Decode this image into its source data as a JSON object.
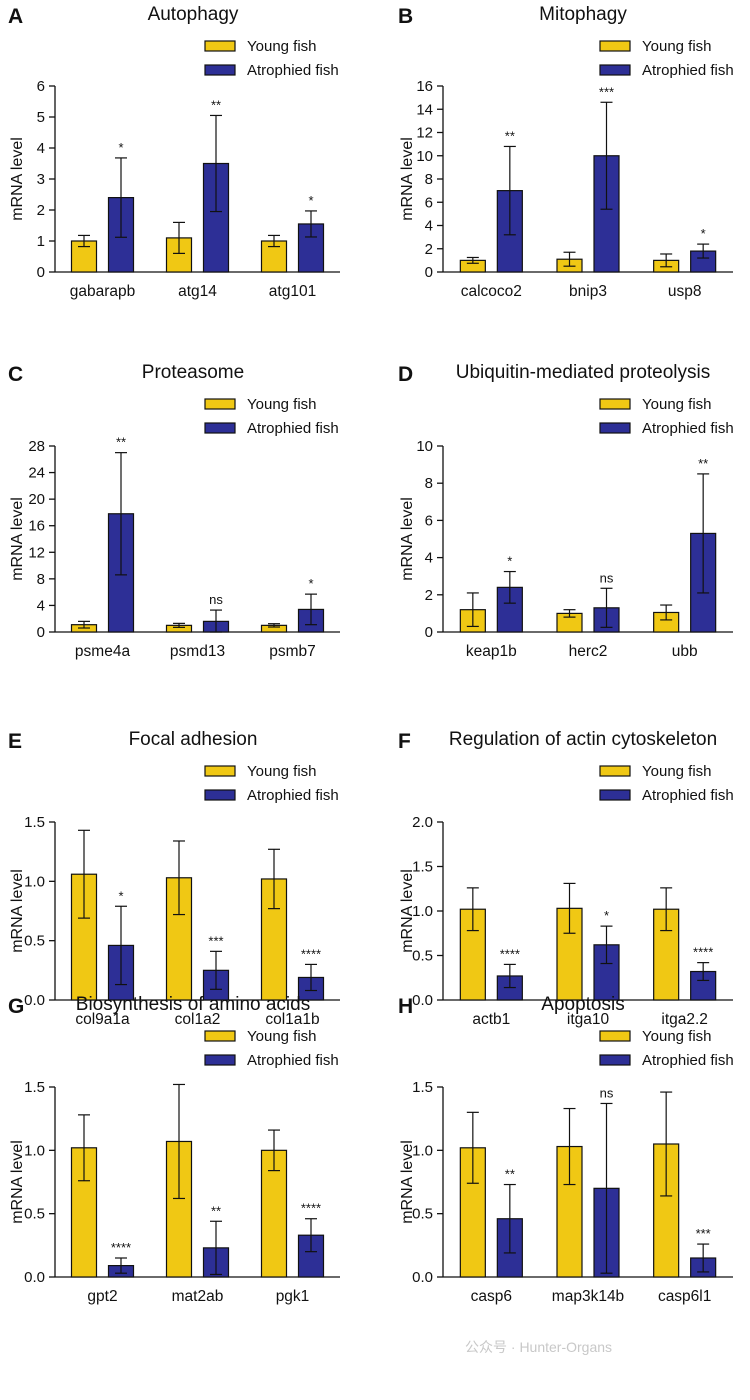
{
  "colors": {
    "young": "#f0c814",
    "atrophied": "#2d2f96",
    "stroke": "#111111"
  },
  "watermark": "公众号 · Hunter-Organs",
  "chart_data": [
    {
      "panel": "A",
      "type": "bar",
      "title": "Autophagy",
      "ylabel": "mRNA level",
      "categories": [
        "gabarapb",
        "atg14",
        "atg101"
      ],
      "ylim": [
        0,
        6
      ],
      "yticks": [
        0,
        1,
        2,
        3,
        4,
        5,
        6
      ],
      "tick_decimals": 0,
      "series": [
        {
          "name": "Young fish",
          "values": [
            1.0,
            1.1,
            1.0
          ],
          "errors": [
            0.18,
            0.5,
            0.18
          ],
          "sig": [
            "",
            "",
            ""
          ]
        },
        {
          "name": "Atrophied fish",
          "values": [
            2.4,
            3.5,
            1.55
          ],
          "errors": [
            1.28,
            1.55,
            0.42
          ],
          "sig": [
            "*",
            "**",
            "*"
          ]
        }
      ]
    },
    {
      "panel": "B",
      "type": "bar",
      "title": "Mitophagy",
      "ylabel": "mRNA level",
      "categories": [
        "calcoco2",
        "bnip3",
        "usp8"
      ],
      "ylim": [
        0,
        16
      ],
      "yticks": [
        0,
        2,
        4,
        6,
        8,
        10,
        12,
        14,
        16
      ],
      "tick_decimals": 0,
      "series": [
        {
          "name": "Young fish",
          "values": [
            1.0,
            1.1,
            1.0
          ],
          "errors": [
            0.25,
            0.6,
            0.55
          ],
          "sig": [
            "",
            "",
            ""
          ]
        },
        {
          "name": "Atrophied fish",
          "values": [
            7.0,
            10.0,
            1.8
          ],
          "errors": [
            3.8,
            4.6,
            0.6
          ],
          "sig": [
            "**",
            "***",
            "*"
          ]
        }
      ]
    },
    {
      "panel": "C",
      "type": "bar",
      "title": "Proteasome",
      "ylabel": "mRNA level",
      "categories": [
        "psme4a",
        "psmd13",
        "psmb7"
      ],
      "ylim": [
        0,
        28
      ],
      "yticks": [
        0,
        4,
        8,
        12,
        16,
        20,
        24,
        28
      ],
      "tick_decimals": 0,
      "series": [
        {
          "name": "Young fish",
          "values": [
            1.1,
            1.0,
            1.0
          ],
          "errors": [
            0.5,
            0.3,
            0.25
          ],
          "sig": [
            "",
            "",
            ""
          ]
        },
        {
          "name": "Atrophied fish",
          "values": [
            17.8,
            1.6,
            3.4
          ],
          "errors": [
            9.2,
            1.7,
            2.3
          ],
          "sig": [
            "**",
            "ns",
            "*"
          ]
        }
      ]
    },
    {
      "panel": "D",
      "type": "bar",
      "title": "Ubiquitin-mediated proteolysis",
      "ylabel": "mRNA level",
      "categories": [
        "keap1b",
        "herc2",
        "ubb"
      ],
      "ylim": [
        0,
        10
      ],
      "yticks": [
        0,
        2,
        4,
        6,
        8,
        10
      ],
      "tick_decimals": 0,
      "series": [
        {
          "name": "Young fish",
          "values": [
            1.2,
            1.0,
            1.05
          ],
          "errors": [
            0.9,
            0.2,
            0.4
          ],
          "sig": [
            "",
            "",
            ""
          ]
        },
        {
          "name": "Atrophied fish",
          "values": [
            2.4,
            1.3,
            5.3
          ],
          "errors": [
            0.85,
            1.05,
            3.2
          ],
          "sig": [
            "*",
            "ns",
            "**"
          ]
        }
      ]
    },
    {
      "panel": "E",
      "type": "bar",
      "title": "Focal adhesion",
      "ylabel": "mRNA level",
      "categories": [
        "col9a1a",
        "col1a2",
        "col1a1b"
      ],
      "ylim": [
        0,
        1.5
      ],
      "yticks": [
        0,
        0.5,
        1.0,
        1.5
      ],
      "tick_decimals": 1,
      "series": [
        {
          "name": "Young fish",
          "values": [
            1.06,
            1.03,
            1.02
          ],
          "errors": [
            0.37,
            0.31,
            0.25
          ],
          "sig": [
            "",
            "",
            ""
          ]
        },
        {
          "name": "Atrophied fish",
          "values": [
            0.46,
            0.25,
            0.19
          ],
          "errors": [
            0.33,
            0.16,
            0.11
          ],
          "sig": [
            "*",
            "***",
            "****"
          ]
        }
      ]
    },
    {
      "panel": "F",
      "type": "bar",
      "title": "Regulation of actin cytoskeleton",
      "ylabel": "mRNA level",
      "categories": [
        "actb1",
        "itga10",
        "itga2.2"
      ],
      "ylim": [
        0,
        2.0
      ],
      "yticks": [
        0,
        0.5,
        1.0,
        1.5,
        2.0
      ],
      "tick_decimals": 1,
      "series": [
        {
          "name": "Young fish",
          "values": [
            1.02,
            1.03,
            1.02
          ],
          "errors": [
            0.24,
            0.28,
            0.24
          ],
          "sig": [
            "",
            "",
            ""
          ]
        },
        {
          "name": "Atrophied fish",
          "values": [
            0.27,
            0.62,
            0.32
          ],
          "errors": [
            0.13,
            0.21,
            0.1
          ],
          "sig": [
            "****",
            "*",
            "****"
          ]
        }
      ]
    },
    {
      "panel": "G",
      "type": "bar",
      "title": "Biosynthesis of amino acids",
      "ylabel": "mRNA level",
      "categories": [
        "gpt2",
        "mat2ab",
        "pgk1"
      ],
      "ylim": [
        0,
        1.5
      ],
      "yticks": [
        0,
        0.5,
        1.0,
        1.5
      ],
      "tick_decimals": 1,
      "series": [
        {
          "name": "Young fish",
          "values": [
            1.02,
            1.07,
            1.0
          ],
          "errors": [
            0.26,
            0.45,
            0.16
          ],
          "sig": [
            "",
            "",
            ""
          ]
        },
        {
          "name": "Atrophied fish",
          "values": [
            0.09,
            0.23,
            0.33
          ],
          "errors": [
            0.06,
            0.21,
            0.13
          ],
          "sig": [
            "****",
            "**",
            "****"
          ]
        }
      ]
    },
    {
      "panel": "H",
      "type": "bar",
      "title": "Apoptosis",
      "ylabel": "mRNA level",
      "categories": [
        "casp6",
        "map3k14b",
        "casp6l1"
      ],
      "ylim": [
        0,
        1.5
      ],
      "yticks": [
        0,
        0.5,
        1.0,
        1.5
      ],
      "tick_decimals": 1,
      "series": [
        {
          "name": "Young fish",
          "values": [
            1.02,
            1.03,
            1.05
          ],
          "errors": [
            0.28,
            0.3,
            0.41
          ],
          "sig": [
            "",
            "",
            ""
          ]
        },
        {
          "name": "Atrophied fish",
          "values": [
            0.46,
            0.7,
            0.15
          ],
          "errors": [
            0.27,
            0.67,
            0.11
          ],
          "sig": [
            "**",
            "ns",
            "***"
          ]
        }
      ]
    }
  ]
}
